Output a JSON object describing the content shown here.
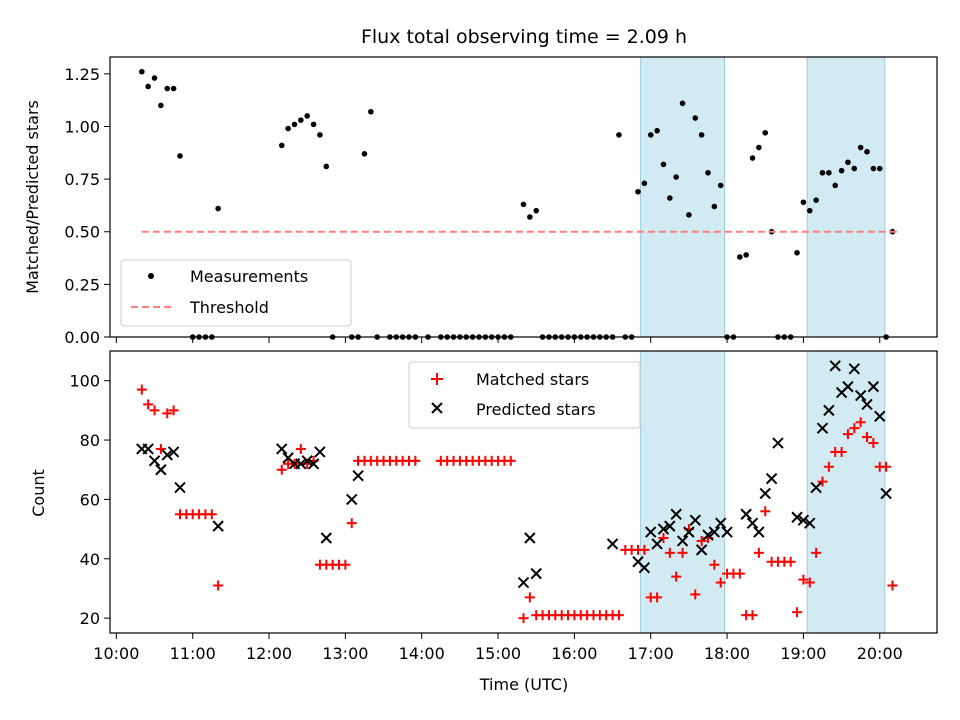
{
  "title": "Flux total observing time = 2.09 h",
  "shaded_regions_color": "#add8e6",
  "chart_data": [
    {
      "type": "scatter",
      "ylabel": "Matched/Predicted stars",
      "ylim": [
        0,
        1.33
      ],
      "yticks": [
        "0.00",
        "0.25",
        "0.50",
        "0.75",
        "1.00",
        "1.25"
      ],
      "ytick_values": [
        0,
        0.25,
        0.5,
        0.75,
        1.0,
        1.25
      ],
      "xlim": [
        "09:55",
        "20:45"
      ],
      "shaded_x": [
        [
          "16:52",
          "17:58"
        ],
        [
          "19:03",
          "20:04"
        ]
      ],
      "legend_placement": "lower-left",
      "series": [
        {
          "name": "Measurements",
          "color": "#000000",
          "marker": "dot",
          "x": [
            "10:20",
            "10:25",
            "10:30",
            "10:35",
            "10:40",
            "10:45",
            "10:50",
            "11:00",
            "11:05",
            "11:10",
            "11:15",
            "11:20",
            "11:25",
            "12:10",
            "12:15",
            "12:20",
            "12:25",
            "12:30",
            "12:35",
            "12:40",
            "12:45",
            "12:50",
            "13:05",
            "13:10",
            "13:15",
            "13:20",
            "13:25",
            "13:35",
            "13:40",
            "13:45",
            "13:50",
            "13:55",
            "14:05",
            "14:15",
            "14:20",
            "14:25",
            "14:30",
            "14:35",
            "14:40",
            "14:45",
            "14:50",
            "14:55",
            "15:00",
            "15:05",
            "15:10",
            "15:20",
            "15:25",
            "15:30",
            "15:35",
            "15:40",
            "15:45",
            "15:50",
            "15:55",
            "16:00",
            "16:05",
            "16:10",
            "16:15",
            "16:20",
            "16:25",
            "16:30",
            "16:35",
            "16:40",
            "16:45",
            "16:50",
            "16:55",
            "17:00",
            "17:05",
            "17:10",
            "17:15",
            "17:20",
            "17:25",
            "17:30",
            "17:35",
            "17:40",
            "17:45",
            "17:50",
            "17:55",
            "18:00",
            "18:05",
            "18:10",
            "18:15",
            "18:20",
            "18:25",
            "18:30",
            "18:35",
            "18:40",
            "18:45",
            "18:50",
            "18:55",
            "19:00",
            "19:05",
            "19:10",
            "19:15",
            "19:20",
            "19:25",
            "19:30",
            "19:35",
            "19:40",
            "19:45",
            "19:50",
            "19:55",
            "20:00",
            "20:05",
            "20:10",
            "20:15"
          ],
          "y": [
            1.26,
            1.19,
            1.23,
            1.1,
            1.18,
            1.18,
            0.86,
            0.0,
            0.0,
            0.0,
            0.0,
            0.61,
            null,
            0.91,
            0.99,
            1.01,
            1.03,
            1.05,
            1.01,
            0.96,
            0.81,
            0.0,
            0.0,
            0.0,
            0.87,
            1.07,
            0.0,
            0.0,
            0.0,
            0.0,
            0.0,
            0.0,
            0.0,
            0.0,
            0.0,
            0.0,
            0.0,
            0.0,
            0.0,
            0.0,
            0.0,
            0.0,
            0.0,
            0.0,
            0.0,
            0.63,
            0.57,
            0.6,
            0.0,
            0.0,
            0.0,
            0.0,
            0.0,
            0.0,
            0.0,
            0.0,
            0.0,
            0.0,
            0.0,
            0.0,
            0.96,
            0.0,
            0.0,
            0.69,
            0.73,
            0.96,
            0.98,
            0.82,
            0.66,
            0.76,
            1.11,
            0.58,
            1.04,
            0.96,
            0.78,
            0.62,
            0.72,
            0.0,
            0.0,
            0.38,
            0.39,
            0.85,
            0.9,
            0.97,
            0.5,
            0.0,
            0.0,
            0.0,
            0.4,
            0.64,
            0.6,
            0.65,
            0.78,
            0.78,
            0.72,
            0.79,
            0.83,
            0.8,
            0.9,
            0.88,
            0.8,
            0.8,
            0.0,
            0.5,
            null
          ]
        },
        {
          "name": "Threshold",
          "color": "#ff7f7f",
          "style": "dashed",
          "x": [
            "10:20",
            "20:15"
          ],
          "y": [
            0.5,
            0.5
          ]
        }
      ]
    },
    {
      "type": "scatter",
      "ylabel": "Count",
      "xlabel": "Time (UTC)",
      "ylim": [
        15,
        110
      ],
      "yticks": [
        "20",
        "40",
        "60",
        "80",
        "100"
      ],
      "ytick_values": [
        20,
        40,
        60,
        80,
        100
      ],
      "xlim": [
        "09:55",
        "20:45"
      ],
      "xticks": [
        "10:00",
        "11:00",
        "12:00",
        "13:00",
        "14:00",
        "15:00",
        "16:00",
        "17:00",
        "18:00",
        "19:00",
        "20:00"
      ],
      "shaded_x": [
        [
          "16:52",
          "17:58"
        ],
        [
          "19:03",
          "20:04"
        ]
      ],
      "legend_placement": "top-center",
      "series": [
        {
          "name": "Matched stars",
          "color": "#ff0000",
          "marker": "plus",
          "x": [
            "10:20",
            "10:25",
            "10:30",
            "10:35",
            "10:40",
            "10:45",
            "10:50",
            "10:55",
            "11:00",
            "11:05",
            "11:10",
            "11:15",
            "11:20",
            "12:10",
            "12:15",
            "12:20",
            "12:25",
            "12:30",
            "12:35",
            "12:40",
            "12:45",
            "12:50",
            "12:55",
            "13:00",
            "13:05",
            "13:10",
            "13:15",
            "13:20",
            "13:25",
            "13:30",
            "13:35",
            "13:40",
            "13:45",
            "13:50",
            "13:55",
            "14:15",
            "14:20",
            "14:25",
            "14:30",
            "14:35",
            "14:40",
            "14:45",
            "14:50",
            "14:55",
            "15:00",
            "15:05",
            "15:10",
            "15:20",
            "15:25",
            "15:30",
            "15:35",
            "15:40",
            "15:45",
            "15:50",
            "15:55",
            "16:00",
            "16:05",
            "16:10",
            "16:15",
            "16:20",
            "16:25",
            "16:30",
            "16:35",
            "16:40",
            "16:45",
            "16:50",
            "16:55",
            "17:00",
            "17:05",
            "17:10",
            "17:15",
            "17:20",
            "17:25",
            "17:30",
            "17:35",
            "17:40",
            "17:45",
            "17:50",
            "17:55",
            "18:00",
            "18:05",
            "18:10",
            "18:15",
            "18:20",
            "18:25",
            "18:30",
            "18:35",
            "18:40",
            "18:45",
            "18:50",
            "18:55",
            "19:00",
            "19:05",
            "19:10",
            "19:15",
            "19:20",
            "19:25",
            "19:30",
            "19:35",
            "19:40",
            "19:45",
            "19:50",
            "19:55",
            "20:00",
            "20:05",
            "20:10",
            "20:15"
          ],
          "y": [
            97,
            92,
            90,
            77,
            89,
            90,
            55,
            55,
            55,
            55,
            55,
            55,
            31,
            70,
            72,
            72,
            77,
            72,
            73,
            38,
            38,
            38,
            38,
            38,
            52,
            73,
            73,
            73,
            73,
            73,
            73,
            73,
            73,
            73,
            73,
            73,
            73,
            73,
            73,
            73,
            73,
            73,
            73,
            73,
            73,
            73,
            73,
            20,
            27,
            21,
            21,
            21,
            21,
            21,
            21,
            21,
            21,
            21,
            21,
            21,
            21,
            21,
            21,
            43,
            43,
            43,
            43,
            27,
            27,
            47,
            42,
            34,
            42,
            50,
            28,
            46,
            47,
            38,
            32,
            35,
            35,
            35,
            21,
            21,
            42,
            56,
            39,
            39,
            39,
            39,
            22,
            33,
            32,
            42,
            66,
            71,
            76,
            76,
            82,
            84,
            86,
            81,
            79,
            71,
            71,
            31,
            null
          ]
        },
        {
          "name": "Predicted stars",
          "color": "#000000",
          "marker": "x",
          "x": [
            "10:20",
            "10:25",
            "10:30",
            "10:35",
            "10:40",
            "10:45",
            "10:50",
            "11:20",
            "12:10",
            "12:15",
            "12:20",
            "12:25",
            "12:30",
            "12:35",
            "12:40",
            "12:45",
            "13:05",
            "13:10",
            "15:20",
            "15:25",
            "15:30",
            "16:30",
            "16:50",
            "16:55",
            "17:00",
            "17:05",
            "17:10",
            "17:15",
            "17:20",
            "17:25",
            "17:30",
            "17:35",
            "17:40",
            "17:45",
            "17:50",
            "17:55",
            "18:00",
            "18:15",
            "18:20",
            "18:25",
            "18:30",
            "18:35",
            "18:40",
            "18:55",
            "19:00",
            "19:05",
            "19:10",
            "19:15",
            "19:20",
            "19:25",
            "19:30",
            "19:35",
            "19:40",
            "19:45",
            "19:50",
            "19:55",
            "20:00",
            "20:05",
            "20:10"
          ],
          "y": [
            77,
            77,
            73,
            70,
            75,
            76,
            64,
            51,
            77,
            74,
            72,
            72,
            73,
            72,
            76,
            47,
            60,
            68,
            32,
            47,
            35,
            45,
            39,
            37,
            49,
            45,
            50,
            51,
            55,
            46,
            49,
            53,
            43,
            48,
            49,
            52,
            49,
            55,
            52,
            49,
            62,
            67,
            79,
            54,
            53,
            52,
            64,
            84,
            90,
            105,
            96,
            98,
            104,
            95,
            92,
            98,
            88,
            62,
            null
          ]
        }
      ]
    }
  ]
}
